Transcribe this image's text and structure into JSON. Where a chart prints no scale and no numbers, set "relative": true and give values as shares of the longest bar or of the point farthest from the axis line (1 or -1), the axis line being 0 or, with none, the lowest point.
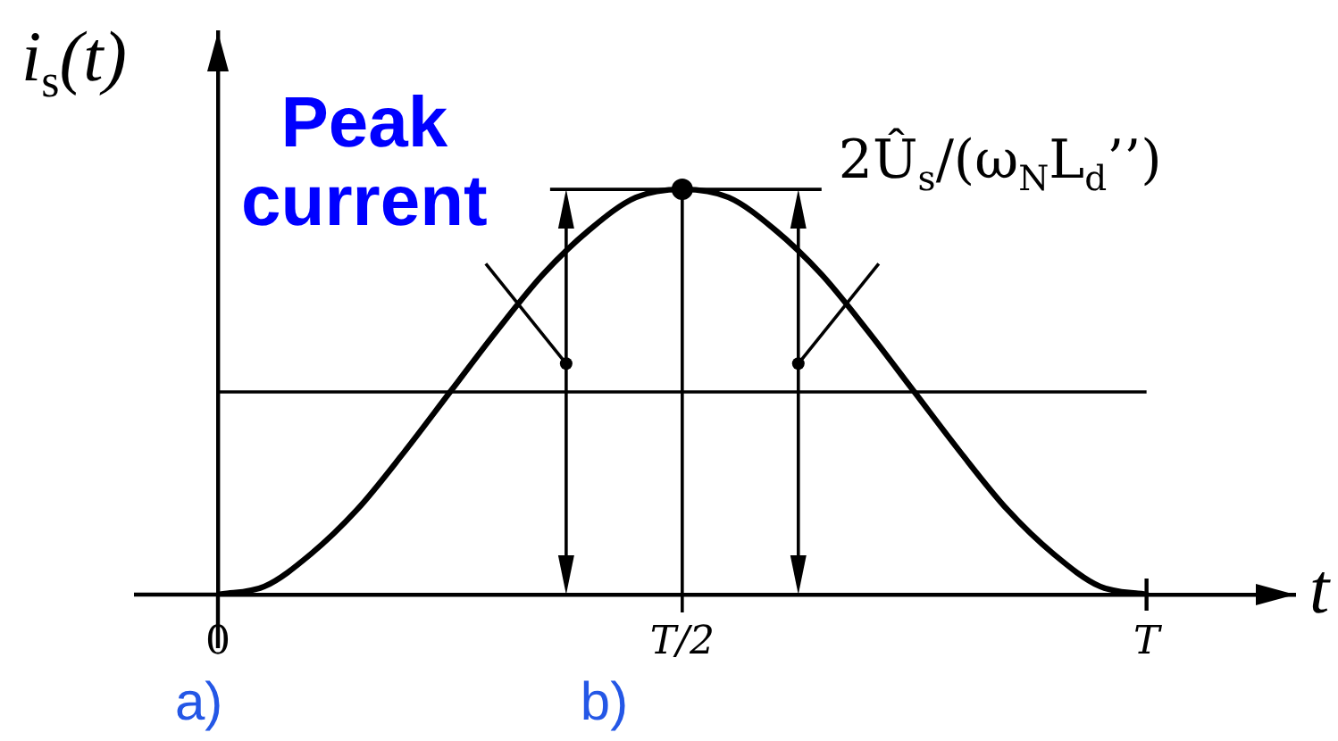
{
  "chart_data": {
    "type": "line",
    "relative": true,
    "xlabel": "t",
    "ylabel": "i$_{s}$(t)",
    "categories": [
      "0",
      null,
      null,
      null,
      null,
      null,
      null,
      null,
      null,
      null,
      "T/2",
      null,
      null,
      null,
      null,
      null,
      null,
      null,
      null,
      null,
      "T"
    ],
    "series": [
      {
        "color": "#000000",
        "values": [
          0,
          0.02,
          0.1,
          0.21,
          0.35,
          0.5,
          0.65,
          0.79,
          0.9,
          0.98,
          1,
          0.98,
          0.9,
          0.79,
          0.65,
          0.5,
          0.35,
          0.21,
          0.1,
          0.02,
          0
        ]
      },
      {
        "type": "scatter",
        "color": "#000000",
        "marker": "circle",
        "values": [
          null,
          null,
          null,
          null,
          null,
          null,
          null,
          null,
          null,
          null,
          1,
          null,
          null,
          null,
          null,
          null,
          null,
          null,
          null,
          null,
          null
        ]
      }
    ],
    "ref_lines": [
      {
        "axis": "y",
        "value": 0.5,
        "color": "#000000"
      },
      {
        "axis": "x",
        "value": "T/2",
        "color": "#000000"
      }
    ],
    "annotations": [
      "Peak current",
      "2Û$_{s}$/(ω$_{N}$L$_{d}$’’)",
      "a)",
      "b)"
    ]
  }
}
